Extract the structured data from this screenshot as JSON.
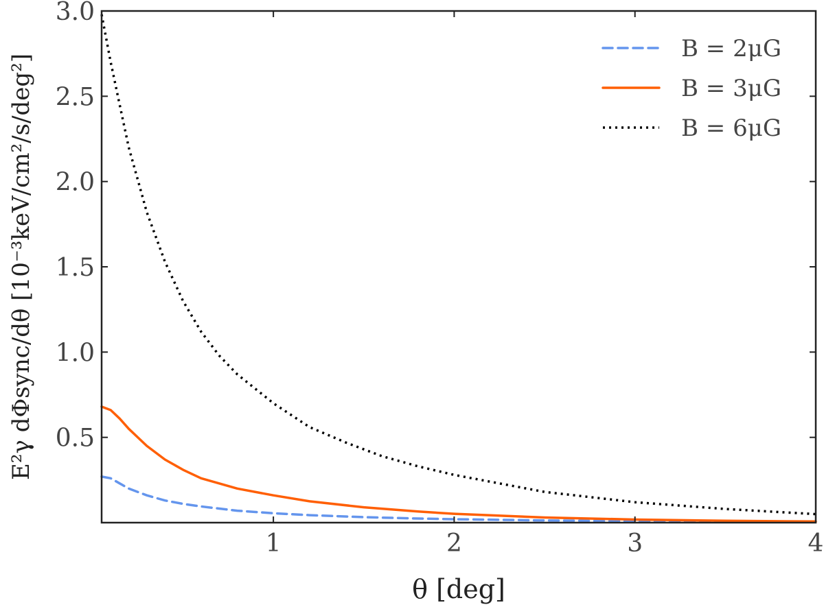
{
  "chart_data": {
    "type": "line",
    "xlabel": "θ [deg]",
    "ylabel": "E²γ dΦsync/dθ [10⁻³keV/cm²/s/deg²]",
    "xlim": [
      0.05,
      4.0
    ],
    "ylim": [
      0.0,
      3.0
    ],
    "x_ticks": [
      1,
      2,
      3,
      4
    ],
    "x_tick_labels": [
      "1",
      "2",
      "3",
      "4"
    ],
    "y_ticks": [
      0.5,
      1.0,
      1.5,
      2.0,
      2.5,
      3.0
    ],
    "y_tick_labels": [
      "0.5",
      "1.0",
      "1.5",
      "2.0",
      "2.5",
      "3.0"
    ],
    "grid": false,
    "legend_position": "top-right",
    "series": [
      {
        "name": "B = 2μG",
        "color": "#6495ED",
        "style": "dashed",
        "x": [
          0.05,
          0.1,
          0.15,
          0.2,
          0.3,
          0.4,
          0.5,
          0.6,
          0.8,
          1.0,
          1.2,
          1.5,
          1.8,
          2.0,
          2.5,
          3.0,
          3.5,
          4.0
        ],
        "y": [
          0.27,
          0.26,
          0.23,
          0.2,
          0.16,
          0.13,
          0.11,
          0.095,
          0.07,
          0.055,
          0.044,
          0.032,
          0.024,
          0.02,
          0.013,
          0.008,
          0.005,
          0.003
        ]
      },
      {
        "name": "B = 3μG",
        "color": "#FF5F05",
        "style": "solid",
        "x": [
          0.05,
          0.1,
          0.15,
          0.2,
          0.3,
          0.4,
          0.5,
          0.6,
          0.8,
          1.0,
          1.2,
          1.5,
          1.8,
          2.0,
          2.5,
          3.0,
          3.5,
          4.0
        ],
        "y": [
          0.68,
          0.66,
          0.61,
          0.55,
          0.45,
          0.37,
          0.31,
          0.26,
          0.2,
          0.16,
          0.125,
          0.09,
          0.065,
          0.052,
          0.03,
          0.018,
          0.011,
          0.007
        ]
      },
      {
        "name": "B = 6μG",
        "color": "#000000",
        "style": "dotted",
        "x": [
          0.05,
          0.1,
          0.15,
          0.2,
          0.3,
          0.4,
          0.5,
          0.6,
          0.7,
          0.8,
          1.0,
          1.2,
          1.4,
          1.6,
          1.8,
          2.0,
          2.5,
          3.0,
          3.5,
          4.0
        ],
        "y": [
          2.98,
          2.7,
          2.45,
          2.2,
          1.82,
          1.53,
          1.3,
          1.12,
          0.98,
          0.87,
          0.7,
          0.56,
          0.47,
          0.39,
          0.33,
          0.28,
          0.18,
          0.12,
          0.08,
          0.05
        ]
      }
    ]
  }
}
